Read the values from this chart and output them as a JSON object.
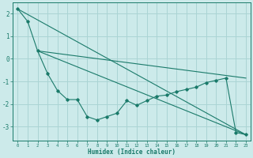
{
  "title": "",
  "xlabel": "Humidex (Indice chaleur)",
  "bg_color": "#cceaea",
  "grid_color": "#aad4d4",
  "line_color": "#1a7a6a",
  "xlim": [
    -0.5,
    23.5
  ],
  "ylim": [
    -3.6,
    2.5
  ],
  "yticks": [
    -3,
    -2,
    -1,
    0,
    1,
    2
  ],
  "xticks": [
    0,
    1,
    2,
    3,
    4,
    5,
    6,
    7,
    8,
    9,
    10,
    11,
    12,
    13,
    14,
    15,
    16,
    17,
    18,
    19,
    20,
    21,
    22,
    23
  ],
  "line1_x": [
    0,
    1,
    2,
    3,
    4,
    5,
    6,
    7,
    8,
    9,
    10,
    11,
    12,
    13,
    14,
    15,
    16,
    17,
    18,
    19,
    20,
    21,
    22,
    23
  ],
  "line1_y": [
    2.2,
    1.65,
    0.35,
    -0.65,
    -1.4,
    -1.8,
    -1.8,
    -2.55,
    -2.7,
    -2.55,
    -2.4,
    -1.85,
    -2.05,
    -1.85,
    -1.65,
    -1.6,
    -1.45,
    -1.35,
    -1.25,
    -1.05,
    -0.95,
    -0.85,
    -3.25,
    -3.35
  ],
  "line2_x": [
    0,
    23
  ],
  "line2_y": [
    2.2,
    -3.35
  ],
  "line3_x": [
    2,
    23
  ],
  "line3_y": [
    0.35,
    -3.35
  ],
  "line4_x": [
    2,
    23
  ],
  "line4_y": [
    0.35,
    -0.85
  ]
}
